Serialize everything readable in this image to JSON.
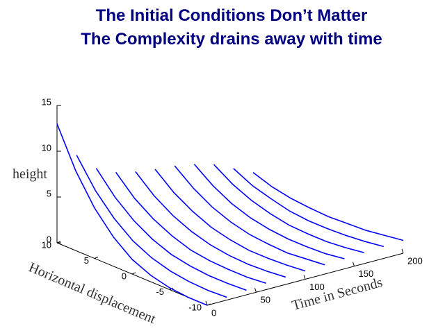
{
  "chart_data": {
    "type": "waterfall3d",
    "title_lines": [
      "The Initial Conditions Don’t Matter",
      "The Complexity drains away with time"
    ],
    "zlabel": "height",
    "xlabel": "Horizontal displacement",
    "tlabel": "Time in Seconds",
    "color": "#0000ff",
    "xlim": [
      -10,
      10
    ],
    "xticks": [
      -10,
      -5,
      0,
      5,
      10
    ],
    "tlim": [
      0,
      200
    ],
    "tticks": [
      0,
      50,
      100,
      150,
      200
    ],
    "zlim": [
      0,
      15
    ],
    "zticks": [
      0,
      5,
      10,
      15
    ],
    "x": [
      -10,
      -7.5,
      -5,
      -2.5,
      0,
      2.5,
      5,
      7.5,
      10
    ],
    "slices": [
      {
        "time": 0,
        "values": [
          0,
          0.0,
          0.2,
          0.7,
          1.6,
          3.2,
          5.5,
          8.7,
          13
        ]
      },
      {
        "time": 20,
        "values": [
          0.3,
          0.2,
          0.3,
          0.6,
          1.2,
          2.2,
          3.8,
          6.0,
          9
        ]
      },
      {
        "time": 40,
        "values": [
          0.5,
          0.4,
          0.4,
          0.6,
          1.0,
          1.8,
          3.0,
          4.7,
          7
        ]
      },
      {
        "time": 60,
        "values": [
          0.7,
          0.5,
          0.5,
          0.6,
          0.9,
          1.6,
          2.6,
          4.0,
          6
        ]
      },
      {
        "time": 80,
        "values": [
          0.8,
          0.6,
          0.5,
          0.6,
          0.9,
          1.5,
          2.4,
          3.7,
          5.5
        ]
      },
      {
        "time": 100,
        "values": [
          0.9,
          0.7,
          0.6,
          0.6,
          0.9,
          1.4,
          2.3,
          3.5,
          5.2
        ]
      },
      {
        "time": 120,
        "values": [
          1,
          0.8,
          0.6,
          0.7,
          0.9,
          1.4,
          2.2,
          3.4,
          5
        ]
      },
      {
        "time": 140,
        "values": [
          1.1,
          0.8,
          0.7,
          0.7,
          0.9,
          1.3,
          2.0,
          3.1,
          4.6
        ]
      },
      {
        "time": 160,
        "values": [
          1.2,
          0.9,
          0.7,
          0.7,
          0.8,
          1.2,
          1.8,
          2.7,
          4
        ]
      },
      {
        "time": 180,
        "values": [
          1.3,
          1.0,
          0.8,
          0.7,
          0.7,
          0.9,
          1.4,
          2.0,
          3
        ]
      },
      {
        "time": 200,
        "values": [
          1.4,
          1.1,
          0.8,
          0.7,
          0.6,
          0.7,
          0.9,
          1.3,
          2
        ]
      }
    ]
  }
}
